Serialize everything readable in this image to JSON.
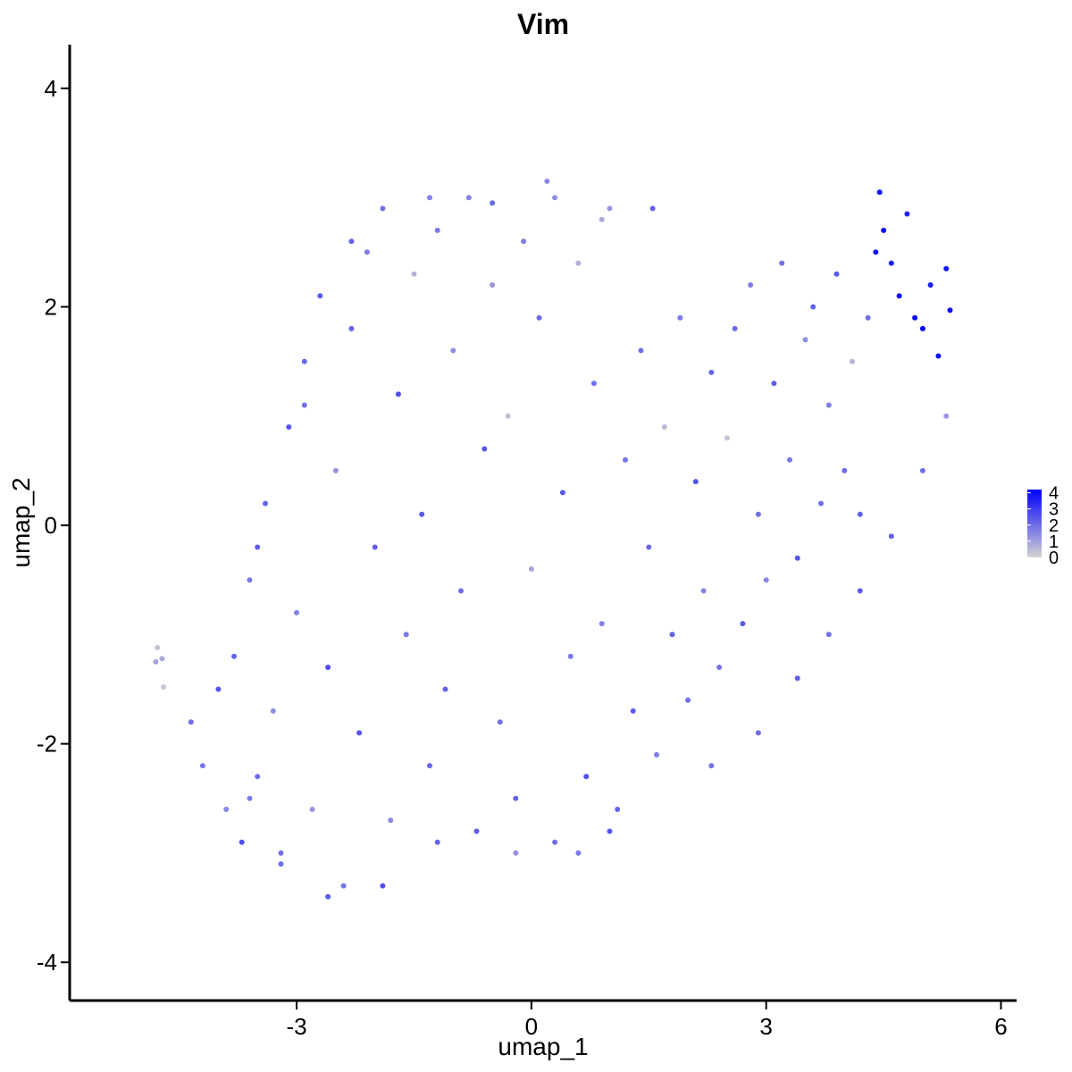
{
  "chart_data": {
    "type": "scatter",
    "title": "Vim",
    "xlabel": "umap_1",
    "ylabel": "umap_2",
    "xlim": [
      -5.9,
      6.2
    ],
    "ylim": [
      -4.35,
      4.4
    ],
    "x_ticks": [
      -3,
      0,
      3,
      6
    ],
    "y_ticks": [
      -4,
      -2,
      0,
      2,
      4
    ],
    "x_tick_labels": [
      "-3",
      "0",
      "3",
      "6"
    ],
    "y_tick_labels": [
      "-4",
      "-2",
      "0",
      "2",
      "4"
    ],
    "grid": false,
    "legend_position": "right",
    "color_scale": {
      "low_color": "#d3d3d3",
      "high_color": "#0000ff",
      "min": 0,
      "max": 4.2,
      "breaks": [
        0,
        1,
        2,
        3,
        4
      ],
      "labels": [
        "0",
        "1",
        "2",
        "3",
        "4"
      ]
    },
    "points": [
      [
        -4.8,
        -1.25,
        1.0
      ],
      [
        -4.78,
        -1.12,
        0.3
      ],
      [
        -4.72,
        -1.22,
        0.8
      ],
      [
        -4.7,
        -1.48,
        0.2
      ],
      [
        -4.35,
        -1.8,
        2.0
      ],
      [
        -4.2,
        -2.2,
        1.8
      ],
      [
        -4.0,
        -1.5,
        2.5
      ],
      [
        -3.9,
        -2.6,
        1.5
      ],
      [
        -3.8,
        -1.2,
        2.2
      ],
      [
        -3.7,
        -2.9,
        2.6
      ],
      [
        -3.6,
        -0.5,
        1.8
      ],
      [
        -3.5,
        -2.3,
        2.0
      ],
      [
        -3.4,
        0.2,
        2.2
      ],
      [
        -3.3,
        -1.7,
        1.4
      ],
      [
        -3.2,
        -3.1,
        2.0
      ],
      [
        -3.1,
        0.9,
        2.5
      ],
      [
        -3.0,
        -0.8,
        1.6
      ],
      [
        -2.9,
        1.5,
        2.1
      ],
      [
        -2.8,
        -2.6,
        1.2
      ],
      [
        -2.7,
        2.1,
        2.4
      ],
      [
        -2.6,
        -1.3,
        2.7
      ],
      [
        -2.5,
        0.5,
        1.3
      ],
      [
        -2.4,
        -3.3,
        1.9
      ],
      [
        -2.3,
        1.8,
        2.2
      ],
      [
        -2.2,
        -1.9,
        2.5
      ],
      [
        -2.1,
        2.5,
        1.7
      ],
      [
        -2.0,
        -0.2,
        2.3
      ],
      [
        -1.9,
        2.9,
        2.0
      ],
      [
        -1.8,
        -2.7,
        1.5
      ],
      [
        -1.7,
        1.2,
        2.6
      ],
      [
        -1.6,
        -1.0,
        1.9
      ],
      [
        -1.5,
        2.3,
        0.6
      ],
      [
        -1.4,
        0.1,
        2.4
      ],
      [
        -1.3,
        -2.2,
        2.1
      ],
      [
        -1.2,
        2.7,
        1.8
      ],
      [
        -1.1,
        -1.5,
        2.2
      ],
      [
        -1.0,
        1.6,
        1.4
      ],
      [
        -0.9,
        -0.6,
        2.0
      ],
      [
        -0.8,
        3.0,
        1.6
      ],
      [
        -0.7,
        -2.8,
        2.3
      ],
      [
        -0.6,
        0.7,
        2.5
      ],
      [
        -0.5,
        2.2,
        1.2
      ],
      [
        -0.4,
        -1.8,
        2.0
      ],
      [
        -0.3,
        1.0,
        0.4
      ],
      [
        -0.2,
        -2.5,
        2.2
      ],
      [
        -0.1,
        2.6,
        1.7
      ],
      [
        0.0,
        -0.4,
        0.9
      ],
      [
        0.1,
        1.9,
        2.1
      ],
      [
        0.2,
        3.15,
        1.5
      ],
      [
        0.3,
        -2.9,
        2.0
      ],
      [
        0.4,
        0.3,
        2.4
      ],
      [
        0.5,
        -1.2,
        1.8
      ],
      [
        0.6,
        2.4,
        0.7
      ],
      [
        0.7,
        -2.3,
        2.6
      ],
      [
        0.8,
        1.3,
        2.0
      ],
      [
        0.9,
        -0.9,
        1.6
      ],
      [
        1.0,
        2.9,
        1.2
      ],
      [
        1.1,
        -2.6,
        2.2
      ],
      [
        1.2,
        0.6,
        1.9
      ],
      [
        1.3,
        -1.7,
        2.4
      ],
      [
        1.4,
        1.6,
        2.0
      ],
      [
        1.5,
        -0.2,
        2.1
      ],
      [
        1.6,
        -2.1,
        1.7
      ],
      [
        1.7,
        0.9,
        0.5
      ],
      [
        1.8,
        -1.0,
        2.3
      ],
      [
        1.9,
        1.9,
        1.8
      ],
      [
        2.0,
        -1.6,
        2.0
      ],
      [
        2.1,
        0.4,
        2.5
      ],
      [
        2.2,
        -0.6,
        1.6
      ],
      [
        2.3,
        1.4,
        2.2
      ],
      [
        2.4,
        -1.3,
        1.9
      ],
      [
        2.5,
        0.8,
        0.3
      ],
      [
        2.6,
        1.8,
        2.1
      ],
      [
        2.7,
        -0.9,
        2.4
      ],
      [
        2.8,
        2.2,
        1.7
      ],
      [
        2.9,
        0.1,
        2.0
      ],
      [
        3.0,
        -0.5,
        1.5
      ],
      [
        3.1,
        1.3,
        2.3
      ],
      [
        3.2,
        2.4,
        2.0
      ],
      [
        3.3,
        0.6,
        1.8
      ],
      [
        3.4,
        -0.3,
        2.5
      ],
      [
        3.5,
        1.7,
        1.4
      ],
      [
        3.6,
        2.0,
        2.2
      ],
      [
        3.7,
        0.2,
        2.0
      ],
      [
        3.8,
        1.1,
        1.7
      ],
      [
        3.9,
        2.3,
        2.4
      ],
      [
        4.0,
        0.5,
        2.1
      ],
      [
        4.1,
        1.5,
        0.6
      ],
      [
        4.2,
        0.1,
        2.3
      ],
      [
        4.3,
        1.9,
        2.0
      ],
      [
        4.4,
        2.5,
        3.8
      ],
      [
        4.45,
        3.05,
        3.9
      ],
      [
        4.5,
        2.7,
        4.1
      ],
      [
        4.6,
        2.4,
        3.6
      ],
      [
        4.7,
        2.1,
        3.9
      ],
      [
        4.8,
        2.85,
        3.5
      ],
      [
        4.9,
        1.9,
        4.0
      ],
      [
        5.0,
        1.8,
        4.2
      ],
      [
        5.1,
        2.2,
        3.7
      ],
      [
        5.2,
        1.55,
        3.9
      ],
      [
        5.3,
        2.35,
        3.8
      ],
      [
        5.35,
        1.97,
        4.0
      ],
      [
        5.3,
        1.0,
        1.2
      ],
      [
        5.0,
        0.5,
        2.0
      ],
      [
        4.6,
        -0.1,
        2.2
      ],
      [
        4.2,
        -0.6,
        2.4
      ],
      [
        3.8,
        -1.0,
        2.0
      ],
      [
        3.4,
        -1.4,
        2.3
      ],
      [
        2.9,
        -1.9,
        2.1
      ],
      [
        2.3,
        -2.2,
        1.9
      ],
      [
        1.0,
        -2.8,
        2.5
      ],
      [
        0.6,
        -3.0,
        1.8
      ],
      [
        -0.2,
        -3.0,
        1.3
      ],
      [
        -1.2,
        -2.9,
        2.2
      ],
      [
        -1.9,
        -3.3,
        2.6
      ],
      [
        -2.6,
        -3.4,
        2.4
      ],
      [
        -3.2,
        -3.0,
        2.0
      ],
      [
        -3.6,
        -2.5,
        1.7
      ],
      [
        -3.5,
        -0.2,
        2.3
      ],
      [
        -2.9,
        1.1,
        2.0
      ],
      [
        -2.3,
        2.6,
        2.2
      ],
      [
        -1.3,
        3.0,
        1.6
      ],
      [
        -0.5,
        2.95,
        2.1
      ],
      [
        0.3,
        3.0,
        1.4
      ],
      [
        0.9,
        2.8,
        0.8
      ],
      [
        1.55,
        2.9,
        2.3
      ]
    ]
  }
}
